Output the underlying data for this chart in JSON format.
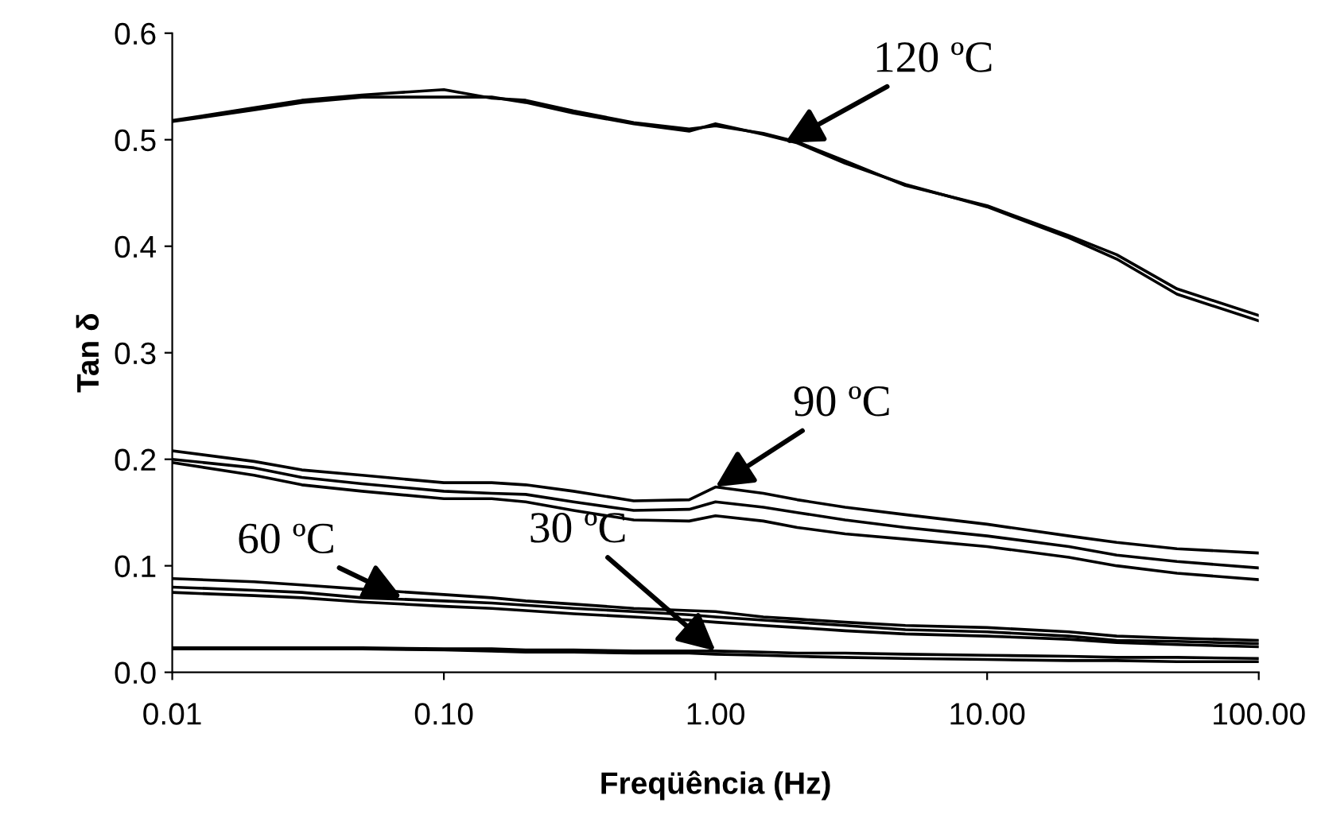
{
  "chart_data": {
    "type": "line",
    "xlabel": "Freqüência (Hz)",
    "ylabel": "Tan δ",
    "log": "x",
    "grid": false,
    "marker": "none",
    "line_style": "solid",
    "xlim": [
      0.01,
      100
    ],
    "xticks": [
      {
        "value": 0.01,
        "label": "0.01"
      },
      {
        "value": 0.1,
        "label": "0.10"
      },
      {
        "value": 1,
        "label": "1.00"
      },
      {
        "value": 10,
        "label": "10.00"
      },
      {
        "value": 100,
        "label": "100.00"
      }
    ],
    "ylim": [
      0,
      0.6
    ],
    "yticks": [
      {
        "value": 0,
        "label": "0.0"
      },
      {
        "value": 0.1,
        "label": "0.1"
      },
      {
        "value": 0.2,
        "label": "0.2"
      },
      {
        "value": 0.3,
        "label": "0.3"
      },
      {
        "value": 0.4,
        "label": "0.4"
      },
      {
        "value": 0.5,
        "label": "0.5"
      },
      {
        "value": 0.6,
        "label": "0.6"
      }
    ],
    "x": [
      0.01,
      0.02,
      0.03,
      0.05,
      0.1,
      0.15,
      0.2,
      0.3,
      0.5,
      0.8,
      1,
      1.5,
      2,
      3,
      5,
      10,
      20,
      30,
      50,
      100
    ],
    "series": [
      {
        "color": "#000000",
        "values": [
          0.517,
          0.528,
          0.535,
          0.54,
          0.54,
          0.54,
          0.535,
          0.525,
          0.515,
          0.508,
          0.515,
          0.505,
          0.497,
          0.478,
          0.458,
          0.437,
          0.408,
          0.388,
          0.355,
          0.33
        ]
      },
      {
        "color": "#000000",
        "values": [
          0.518,
          0.53,
          0.537,
          0.542,
          0.547,
          0.539,
          0.537,
          0.527,
          0.516,
          0.51,
          0.513,
          0.506,
          0.498,
          0.48,
          0.457,
          0.438,
          0.41,
          0.392,
          0.36,
          0.335
        ]
      },
      {
        "color": "#000000",
        "values": [
          0.208,
          0.198,
          0.19,
          0.185,
          0.178,
          0.178,
          0.176,
          0.17,
          0.161,
          0.162,
          0.174,
          0.168,
          0.162,
          0.155,
          0.148,
          0.139,
          0.128,
          0.122,
          0.116,
          0.112
        ]
      },
      {
        "color": "#000000",
        "values": [
          0.2,
          0.192,
          0.183,
          0.177,
          0.17,
          0.168,
          0.167,
          0.16,
          0.152,
          0.153,
          0.16,
          0.155,
          0.15,
          0.143,
          0.136,
          0.128,
          0.118,
          0.11,
          0.104,
          0.098
        ]
      },
      {
        "color": "#000000",
        "values": [
          0.197,
          0.185,
          0.176,
          0.17,
          0.163,
          0.163,
          0.16,
          0.152,
          0.143,
          0.142,
          0.147,
          0.142,
          0.136,
          0.13,
          0.125,
          0.118,
          0.108,
          0.1,
          0.093,
          0.087
        ]
      },
      {
        "color": "#000000",
        "values": [
          0.088,
          0.085,
          0.082,
          0.078,
          0.073,
          0.07,
          0.067,
          0.064,
          0.06,
          0.058,
          0.057,
          0.052,
          0.05,
          0.047,
          0.044,
          0.042,
          0.038,
          0.034,
          0.032,
          0.03
        ]
      },
      {
        "color": "#000000",
        "values": [
          0.08,
          0.077,
          0.075,
          0.07,
          0.067,
          0.065,
          0.063,
          0.06,
          0.057,
          0.054,
          0.052,
          0.049,
          0.047,
          0.044,
          0.04,
          0.038,
          0.034,
          0.03,
          0.029,
          0.027
        ]
      },
      {
        "color": "#000000",
        "values": [
          0.075,
          0.072,
          0.07,
          0.066,
          0.062,
          0.06,
          0.058,
          0.055,
          0.052,
          0.049,
          0.047,
          0.044,
          0.042,
          0.039,
          0.036,
          0.034,
          0.031,
          0.028,
          0.026,
          0.024
        ]
      },
      {
        "color": "#000000",
        "values": [
          0.023,
          0.023,
          0.023,
          0.023,
          0.022,
          0.022,
          0.021,
          0.021,
          0.02,
          0.02,
          0.02,
          0.019,
          0.018,
          0.018,
          0.017,
          0.016,
          0.015,
          0.014,
          0.014,
          0.013
        ]
      },
      {
        "color": "#000000",
        "values": [
          0.022,
          0.022,
          0.022,
          0.022,
          0.021,
          0.02,
          0.019,
          0.019,
          0.018,
          0.018,
          0.017,
          0.016,
          0.015,
          0.014,
          0.013,
          0.012,
          0.011,
          0.011,
          0.01,
          0.01
        ]
      }
    ],
    "annotations": [
      {
        "text": "120 ºC",
        "x": 1.8,
        "y": 0.497
      },
      {
        "text": "90 ºC",
        "x": 1.0,
        "y": 0.174
      },
      {
        "text": "60 ºC",
        "x": 0.07,
        "y": 0.07
      },
      {
        "text": "30 ºC",
        "x": 1.0,
        "y": 0.02
      }
    ]
  }
}
